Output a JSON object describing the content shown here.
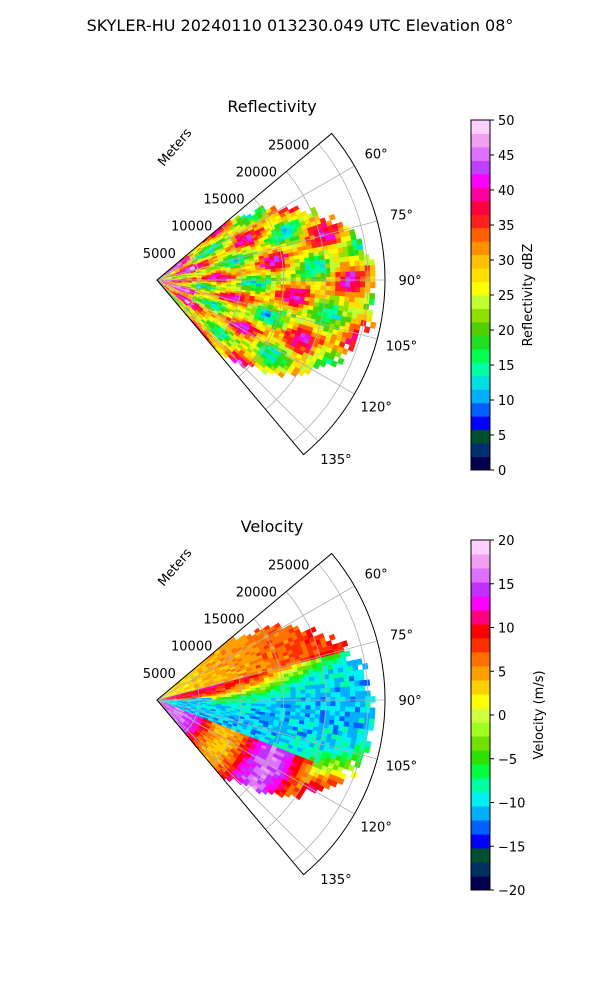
{
  "figure": {
    "title": "SKYLER-HU  20240110  013230.049 UTC Elevation 08°"
  },
  "chart_data": [
    {
      "type": "heatmap",
      "subtype": "polar-sector",
      "title": "Reflectivity",
      "range_label": "Meters",
      "radial_ticks": [
        "5000",
        "10000",
        "15000",
        "20000",
        "25000"
      ],
      "radial_tick_values": [
        5000,
        10000,
        15000,
        20000,
        25000
      ],
      "angle_ticks": [
        "60°",
        "75°",
        "90°",
        "105°",
        "120°",
        "135°"
      ],
      "angle_tick_values": [
        60,
        75,
        90,
        105,
        120,
        135
      ],
      "theta_range_deg": [
        50,
        140
      ],
      "r_max": 27000,
      "colorbar": {
        "label": "Reflectivity dBZ",
        "ticks": [
          "0",
          "5",
          "10",
          "15",
          "20",
          "25",
          "30",
          "35",
          "40",
          "45",
          "50"
        ],
        "tick_values": [
          0,
          5,
          10,
          15,
          20,
          25,
          30,
          35,
          40,
          45,
          50
        ],
        "vmin": 0,
        "vmax": 50,
        "colors": [
          "#00004f",
          "#003070",
          "#004f30",
          "#0000ff",
          "#0060ff",
          "#00b0ff",
          "#00e0e0",
          "#00ffa0",
          "#00ff50",
          "#20e020",
          "#50d000",
          "#90e000",
          "#c0ff30",
          "#ffff00",
          "#ffe000",
          "#ffc000",
          "#ff9000",
          "#ff6000",
          "#ff2020",
          "#ff0040",
          "#ff00a0",
          "#ff00ff",
          "#c040ff",
          "#e070ff",
          "#f0a0f0",
          "#ffd0ff"
        ]
      },
      "field_description": "mostly 20-40 dBZ echoes with embedded 40-45 dBZ bands"
    },
    {
      "type": "heatmap",
      "subtype": "polar-sector",
      "title": "Velocity",
      "range_label": "Meters",
      "radial_ticks": [
        "5000",
        "10000",
        "15000",
        "20000",
        "25000"
      ],
      "radial_tick_values": [
        5000,
        10000,
        15000,
        20000,
        25000
      ],
      "angle_ticks": [
        "60°",
        "75°",
        "90°",
        "105°",
        "120°",
        "135°"
      ],
      "angle_tick_values": [
        60,
        75,
        90,
        105,
        120,
        135
      ],
      "theta_range_deg": [
        50,
        140
      ],
      "r_max": 27000,
      "colorbar": {
        "label": "Velocity (m/s)",
        "ticks": [
          "−20",
          "−15",
          "−10",
          "−5",
          "0",
          "5",
          "10",
          "15",
          "20"
        ],
        "tick_values": [
          -20,
          -15,
          -10,
          -5,
          0,
          5,
          10,
          15,
          20
        ],
        "vmin": -20,
        "vmax": 20,
        "colors": [
          "#00004f",
          "#003060",
          "#004f30",
          "#0000ff",
          "#0060ff",
          "#00b0ff",
          "#00f0f0",
          "#00ffa0",
          "#00ff40",
          "#30e000",
          "#70e000",
          "#a0ff20",
          "#d0ff40",
          "#ffff00",
          "#ffd000",
          "#ffa000",
          "#ff7000",
          "#ff3000",
          "#ff0000",
          "#ff0080",
          "#ff00ff",
          "#c030ff",
          "#e070ff",
          "#f0a0f0",
          "#ffd0ff"
        ]
      },
      "field_description": "inbound negative velocities near 90°, outbound positive velocities toward 60° and 120°"
    }
  ]
}
